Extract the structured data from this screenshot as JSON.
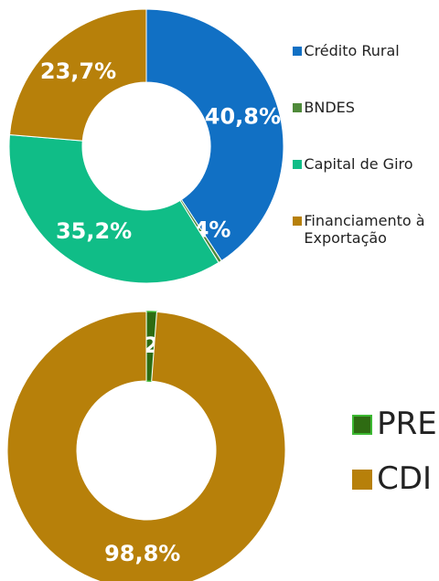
{
  "chart_data": [
    {
      "type": "donut",
      "categories": [
        "Crédito Rural",
        "BNDES",
        "Capital de Giro",
        "Financiamento à Exportação"
      ],
      "values": [
        40.8,
        0.4,
        35.2,
        23.7
      ],
      "value_labels": [
        "40,8%",
        "0,4%",
        "35,2%",
        "23,7%"
      ],
      "colors": [
        "#1170c4",
        "#4f8a3a",
        "#10bd87",
        "#b7800a"
      ]
    },
    {
      "type": "donut",
      "categories": [
        "PRE",
        "CDI"
      ],
      "values": [
        1.2,
        98.8
      ],
      "value_labels": [
        "1,2%",
        "98,8%"
      ],
      "colors": [
        "#2e6b12",
        "#b7800a"
      ]
    }
  ]
}
